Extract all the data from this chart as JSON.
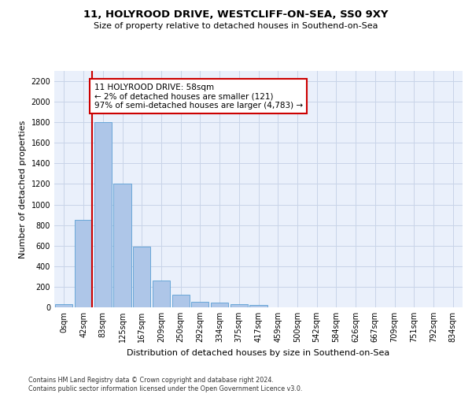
{
  "title_line1": "11, HOLYROOD DRIVE, WESTCLIFF-ON-SEA, SS0 9XY",
  "title_line2": "Size of property relative to detached houses in Southend-on-Sea",
  "xlabel": "Distribution of detached houses by size in Southend-on-Sea",
  "ylabel": "Number of detached properties",
  "footnote": "Contains HM Land Registry data © Crown copyright and database right 2024.\nContains public sector information licensed under the Open Government Licence v3.0.",
  "bar_labels": [
    "0sqm",
    "42sqm",
    "83sqm",
    "125sqm",
    "167sqm",
    "209sqm",
    "250sqm",
    "292sqm",
    "334sqm",
    "375sqm",
    "417sqm",
    "459sqm",
    "500sqm",
    "542sqm",
    "584sqm",
    "626sqm",
    "667sqm",
    "709sqm",
    "751sqm",
    "792sqm",
    "834sqm"
  ],
  "bar_values": [
    30,
    850,
    1800,
    1200,
    590,
    260,
    125,
    50,
    45,
    32,
    20,
    0,
    0,
    0,
    0,
    0,
    0,
    0,
    0,
    0,
    0
  ],
  "bar_color": "#aec6e8",
  "bar_edgecolor": "#5a9fd4",
  "ylim": [
    0,
    2300
  ],
  "yticks": [
    0,
    200,
    400,
    600,
    800,
    1000,
    1200,
    1400,
    1600,
    1800,
    2000,
    2200
  ],
  "property_line_x": 1.45,
  "annotation_text": "11 HOLYROOD DRIVE: 58sqm\n← 2% of detached houses are smaller (121)\n97% of semi-detached houses are larger (4,783) →",
  "annotation_box_color": "#ffffff",
  "annotation_box_edgecolor": "#cc0000",
  "vline_color": "#cc0000",
  "plot_background": "#eaf0fb",
  "grid_color": "#c8d4e8",
  "title1_fontsize": 9.5,
  "title2_fontsize": 8.0,
  "ylabel_fontsize": 8.0,
  "xlabel_fontsize": 8.0,
  "tick_fontsize": 7.0,
  "annot_fontsize": 7.5,
  "footnote_fontsize": 5.8
}
